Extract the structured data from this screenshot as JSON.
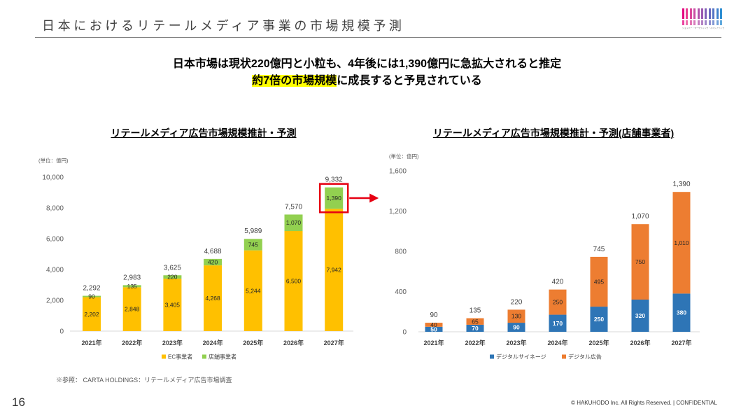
{
  "slide": {
    "title": "日本におけるリテールメディア事業の市場規模予測",
    "page_number": "16",
    "footnote": "※参照： CARTA HOLDINGS：リテールメディア広告市場調査",
    "copyright": "© HAKUHODO Inc. All Rights Reserved. | CONFIDENTIAL"
  },
  "logo": {
    "text": "ショッパー・マーケティング・イニシアティブ",
    "bar_colors": [
      "#E4007F",
      "#E83D8F",
      "#DB4A9C",
      "#C94FA4",
      "#B254AA",
      "#9A58B0",
      "#8160B7",
      "#6A6ABE",
      "#5574C5",
      "#3F80CC",
      "#2E8ED2"
    ]
  },
  "headline": {
    "line1": "日本市場は現状220億円と小粒も、4年後には1,390億円に急拡大されると推定",
    "line2_highlight": "約7倍の市場規模",
    "line2_rest": "に成長すると予見されている",
    "highlight_color": "#FFFF00"
  },
  "chart_data": [
    {
      "type": "bar",
      "stacked": true,
      "title": "リテールメディア広告市場規模推計・予測",
      "unit_label": "(単位：億円)",
      "categories": [
        "2021年",
        "2022年",
        "2023年",
        "2024年",
        "2025年",
        "2026年",
        "2027年"
      ],
      "series": [
        {
          "name": "EC事業者",
          "color": "#FFC000",
          "values": [
            2202,
            2848,
            3405,
            4268,
            5244,
            6500,
            7942
          ],
          "labels": [
            "2,202",
            "2,848",
            "3,405",
            "4,268",
            "5,244",
            "6,500",
            "7,942"
          ]
        },
        {
          "name": "店舗事業者",
          "color": "#92D050",
          "values": [
            90,
            135,
            220,
            420,
            745,
            1070,
            1390
          ],
          "labels": [
            "90",
            "135",
            "220",
            "420",
            "745",
            "1,070",
            "1,390"
          ]
        }
      ],
      "total_labels": [
        "2,292",
        "2,983",
        "3,625",
        "4,688",
        "5,989",
        "7,570",
        "9,332"
      ],
      "ylim": [
        0,
        10000
      ],
      "yticks": [
        0,
        2000,
        4000,
        6000,
        8000,
        10000
      ],
      "ytick_labels": [
        "0",
        "2,000",
        "4,000",
        "6,000",
        "8,000",
        "10,000"
      ],
      "grid": false,
      "legend": "bottom",
      "highlight": {
        "category_index": 6,
        "series_index": 1,
        "color": "#E60012"
      }
    },
    {
      "type": "bar",
      "stacked": true,
      "title": "リテールメディア広告市場規模推計・予測(店舗事業者)",
      "unit_label": "(単位：億円)",
      "categories": [
        "2021年",
        "2022年",
        "2023年",
        "2024年",
        "2025年",
        "2026年",
        "2027年"
      ],
      "series": [
        {
          "name": "デジタルサイネージ",
          "color": "#2E75B6",
          "values": [
            50,
            70,
            90,
            170,
            250,
            320,
            380
          ],
          "labels": [
            "50",
            "70",
            "90",
            "170",
            "250",
            "320",
            "380"
          ]
        },
        {
          "name": "デジタル広告",
          "color": "#ED7D31",
          "values": [
            40,
            65,
            130,
            250,
            495,
            750,
            1010
          ],
          "labels": [
            "40",
            "65",
            "130",
            "250",
            "495",
            "750",
            "1,010"
          ]
        }
      ],
      "total_labels": [
        "90",
        "135",
        "220",
        "420",
        "745",
        "1,070",
        "1,390"
      ],
      "ylim": [
        0,
        1600
      ],
      "yticks": [
        0,
        400,
        800,
        1200,
        1600
      ],
      "ytick_labels": [
        "0",
        "400",
        "800",
        "1,200",
        "1,600"
      ],
      "grid": false,
      "legend": "bottom"
    }
  ]
}
